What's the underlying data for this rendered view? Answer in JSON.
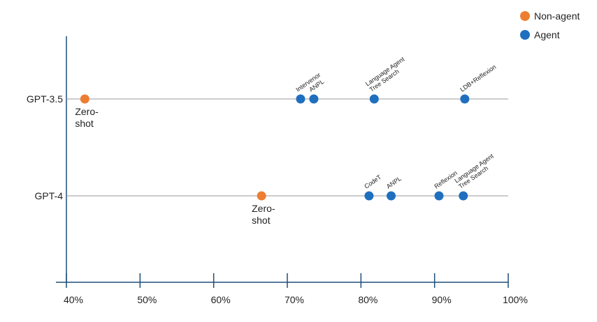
{
  "chart_data": {
    "type": "scatter",
    "title": "",
    "xlabel": "",
    "ylabel": "",
    "xlim": [
      40,
      100
    ],
    "x_ticks": [
      "40%",
      "50%",
      "60%",
      "70%",
      "80%",
      "90%",
      "100%"
    ],
    "x_tick_values": [
      40,
      50,
      60,
      70,
      80,
      90,
      100
    ],
    "categories": [
      "GPT-3.5",
      "GPT-4"
    ],
    "legend": {
      "position": "top-right",
      "entries": [
        {
          "name": "Non-agent",
          "color": "#ED7D31"
        },
        {
          "name": "Agent",
          "color": "#1F6FBF"
        }
      ]
    },
    "series": [
      {
        "name": "Non-agent",
        "color": "#ED7D31",
        "points": [
          {
            "category": "GPT-3.5",
            "x": 42.5,
            "label": "Zero-shot"
          },
          {
            "category": "GPT-4",
            "x": 66.5,
            "label": "Zero-shot"
          }
        ]
      },
      {
        "name": "Agent",
        "color": "#1F6FBF",
        "points": [
          {
            "category": "GPT-3.5",
            "x": 71.8,
            "label": "Intervenor"
          },
          {
            "category": "GPT-3.5",
            "x": 73.6,
            "label": "ANPL"
          },
          {
            "category": "GPT-3.5",
            "x": 81.8,
            "label": "Language Agent Tree Search"
          },
          {
            "category": "GPT-3.5",
            "x": 94.1,
            "label": "LDB+Reflexion"
          },
          {
            "category": "GPT-4",
            "x": 81.1,
            "label": "CodeT"
          },
          {
            "category": "GPT-4",
            "x": 84.1,
            "label": "ANPL"
          },
          {
            "category": "GPT-4",
            "x": 90.6,
            "label": "Reflexion"
          },
          {
            "category": "GPT-4",
            "x": 93.9,
            "label": "Language Agent Tree Search"
          }
        ]
      }
    ]
  }
}
